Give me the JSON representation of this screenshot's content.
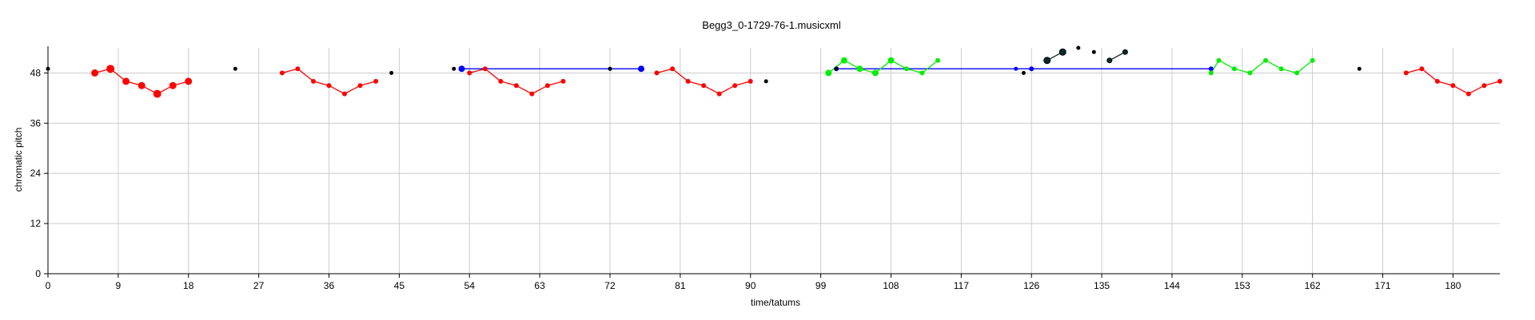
{
  "chart_data": {
    "type": "scatter",
    "title": "Begg3_0-1729-76-1.musicxml",
    "xlabel": "time/tatums",
    "ylabel": "chromatic pitch",
    "xlim": [
      0,
      186
    ],
    "ylim": [
      0,
      54
    ],
    "xticks": [
      0,
      9,
      18,
      27,
      36,
      45,
      54,
      63,
      72,
      81,
      90,
      99,
      108,
      117,
      126,
      135,
      144,
      153,
      162,
      171,
      180
    ],
    "yticks": [
      0,
      12,
      24,
      36,
      48
    ],
    "grid": true,
    "colors": {
      "red": "#ff0000",
      "blue": "#0000ff",
      "green": "#00ee00",
      "dark": "#0a2a2a",
      "black": "#000000"
    },
    "series": [
      {
        "color": "red",
        "connected": true,
        "points": [
          [
            6,
            48,
            9
          ],
          [
            8,
            49,
            10
          ],
          [
            10,
            46,
            9
          ],
          [
            12,
            45,
            9
          ],
          [
            14,
            43,
            10
          ],
          [
            16,
            45,
            9
          ],
          [
            18,
            46,
            9
          ]
        ]
      },
      {
        "color": "red",
        "connected": true,
        "points": [
          [
            30,
            48,
            6
          ],
          [
            32,
            49,
            6
          ],
          [
            34,
            46,
            6
          ],
          [
            36,
            45,
            6
          ],
          [
            38,
            43,
            6
          ],
          [
            40,
            45,
            6
          ],
          [
            42,
            46,
            6
          ]
        ]
      },
      {
        "color": "red",
        "connected": true,
        "points": [
          [
            54,
            48,
            6
          ],
          [
            56,
            49,
            6
          ],
          [
            58,
            46,
            6
          ],
          [
            60,
            45,
            6
          ],
          [
            62,
            43,
            6
          ],
          [
            64,
            45,
            6
          ],
          [
            66,
            46,
            6
          ]
        ]
      },
      {
        "color": "red",
        "connected": true,
        "points": [
          [
            78,
            48,
            6
          ],
          [
            80,
            49,
            6
          ],
          [
            82,
            46,
            6
          ],
          [
            84,
            45,
            6
          ],
          [
            86,
            43,
            6
          ],
          [
            88,
            45,
            6
          ],
          [
            90,
            46,
            6
          ]
        ]
      },
      {
        "color": "red",
        "connected": true,
        "points": [
          [
            174,
            48,
            6
          ],
          [
            176,
            49,
            6
          ],
          [
            178,
            46,
            6
          ],
          [
            180,
            45,
            6
          ],
          [
            182,
            43,
            6
          ],
          [
            184,
            45,
            6
          ],
          [
            186,
            46,
            6
          ]
        ]
      },
      {
        "color": "blue",
        "connected": true,
        "points": [
          [
            53,
            49,
            8
          ],
          [
            72,
            49,
            5
          ],
          [
            76,
            49,
            8
          ]
        ]
      },
      {
        "color": "blue",
        "connected": true,
        "points": [
          [
            101,
            49,
            6
          ],
          [
            124,
            49,
            5
          ],
          [
            126,
            49,
            6
          ],
          [
            149,
            49,
            6
          ]
        ]
      },
      {
        "color": "green",
        "connected": true,
        "points": [
          [
            100,
            48,
            8
          ],
          [
            102,
            51,
            8
          ],
          [
            104,
            49,
            8
          ],
          [
            106,
            48,
            8
          ],
          [
            108,
            51,
            8
          ],
          [
            110,
            49,
            6
          ],
          [
            112,
            48,
            6
          ],
          [
            114,
            51,
            6
          ]
        ]
      },
      {
        "color": "green",
        "connected": true,
        "points": [
          [
            149,
            48,
            6
          ],
          [
            150,
            51,
            6
          ],
          [
            152,
            49,
            6
          ],
          [
            154,
            48,
            6
          ],
          [
            156,
            51,
            6
          ],
          [
            158,
            49,
            6
          ],
          [
            160,
            48,
            6
          ],
          [
            162,
            51,
            6
          ]
        ]
      },
      {
        "color": "dark",
        "connected": true,
        "points": [
          [
            128,
            51,
            8
          ],
          [
            130,
            53,
            8
          ]
        ]
      },
      {
        "color": "dark",
        "connected": true,
        "points": [
          [
            136,
            51,
            6
          ],
          [
            138,
            53,
            6
          ]
        ]
      },
      {
        "color": "black",
        "connected": false,
        "points": [
          [
            0,
            49,
            5
          ],
          [
            24,
            49,
            5
          ],
          [
            44,
            48,
            5
          ],
          [
            52,
            49,
            5
          ],
          [
            72,
            49,
            5
          ],
          [
            92,
            46,
            5
          ],
          [
            101,
            49,
            5
          ],
          [
            125,
            48,
            5
          ],
          [
            132,
            54,
            5
          ],
          [
            134,
            53,
            5
          ],
          [
            168,
            49,
            5
          ]
        ]
      }
    ]
  }
}
